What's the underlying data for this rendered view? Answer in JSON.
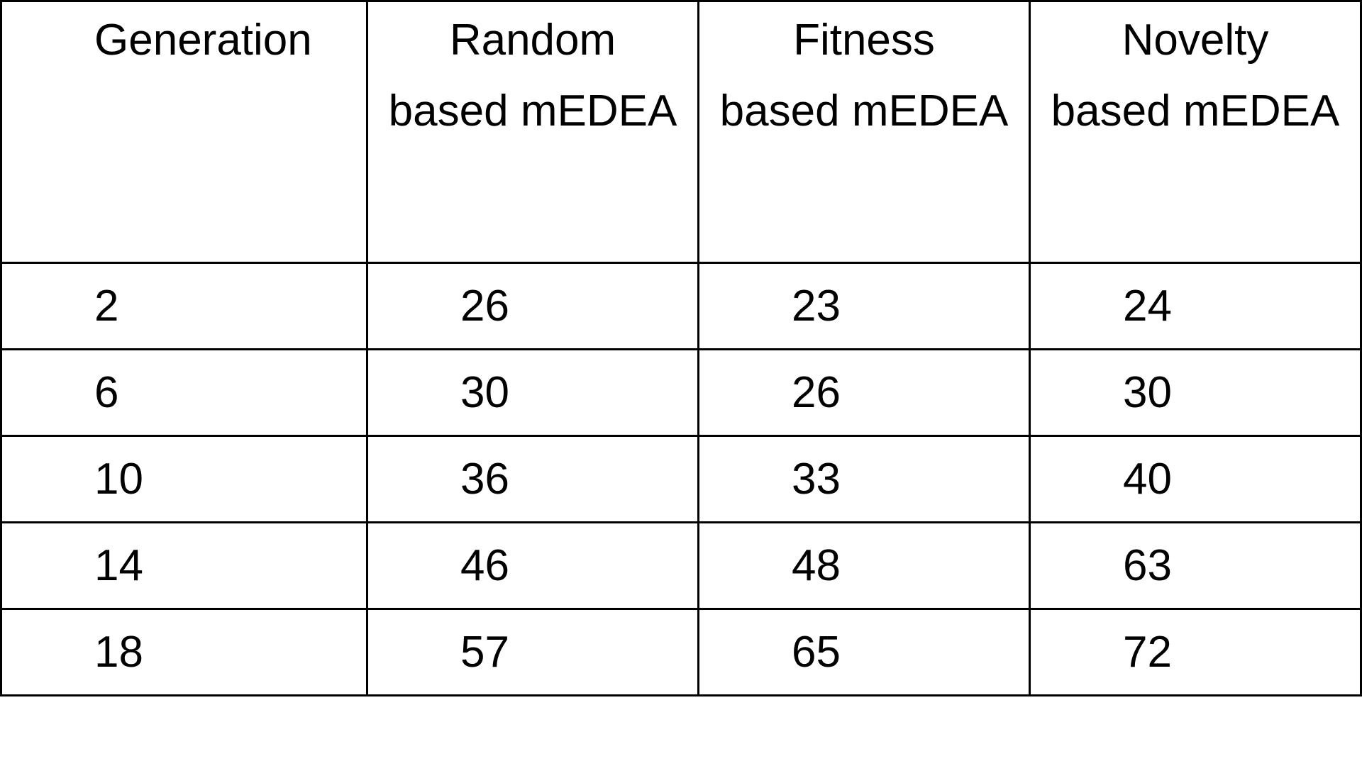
{
  "table": {
    "headers": [
      {
        "line1": "Generation",
        "line2": ""
      },
      {
        "line1": "Random",
        "line2": "based mEDEA"
      },
      {
        "line1": "Fitness",
        "line2": "based mEDEA"
      },
      {
        "line1": "Novelty",
        "line2": "based mEDEA"
      }
    ],
    "rows": [
      [
        "2",
        "26",
        "23",
        "24"
      ],
      [
        "6",
        "30",
        "26",
        "30"
      ],
      [
        "10",
        "36",
        "33",
        "40"
      ],
      [
        "14",
        "46",
        "48",
        "63"
      ],
      [
        "18",
        "57",
        "65",
        "72"
      ]
    ]
  }
}
